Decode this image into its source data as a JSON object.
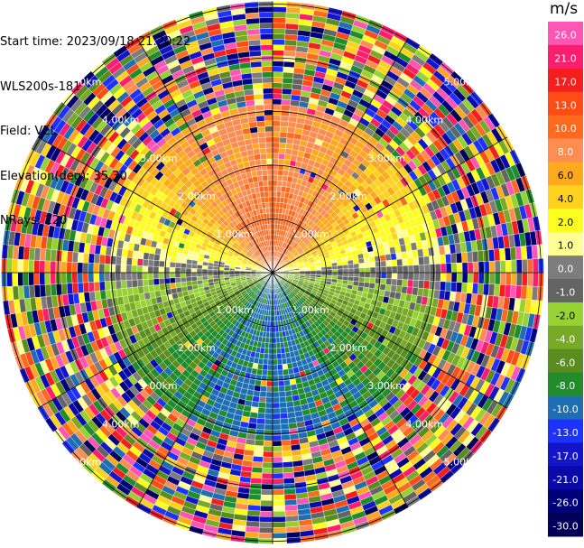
{
  "header": {
    "start_time": "Start time: 2023/09/18 21:20:22",
    "instrument": "WLS200s-181",
    "field": "Field: VEL",
    "elevation": "Elevation(deg): 35.30",
    "nrays": "NRays: 120"
  },
  "colorbar": {
    "unit": "m/s",
    "labels": [
      "26.0",
      "21.0",
      "17.0",
      "13.0",
      "10.0",
      "8.0",
      "6.0",
      "4.0",
      "2.0",
      "1.0",
      "0.0",
      "-1.0",
      "-2.0",
      "-4.0",
      "-6.0",
      "-8.0",
      "-10.0",
      "-13.0",
      "-17.0",
      "-21.0",
      "-26.0",
      "-30.0"
    ],
    "colors": [
      "#ff55b4",
      "#ff1e6e",
      "#f51e1e",
      "#ff4b14",
      "#ff6a1e",
      "#ff8c50",
      "#ffaa1e",
      "#ffd21e",
      "#ffff1e",
      "#ffff96",
      "#7d7d7d",
      "#646464",
      "#96d232",
      "#78aa28",
      "#5a8c1e",
      "#208c2c",
      "#1e6eb4",
      "#1e32ff",
      "#1414c8",
      "#0a0aaa",
      "#000078",
      "#00005a"
    ]
  },
  "chart_data": {
    "type": "ppi",
    "field": "VEL",
    "units": "m/s",
    "n_rays": 120,
    "elevation_deg": 35.3,
    "range_rings_km": [
      1.0,
      2.0,
      3.0,
      4.0,
      5.0
    ],
    "ring_labels": [
      "1.00km",
      "2.00km",
      "3.00km",
      "4.00km",
      "5.00km"
    ],
    "vmin": -30.0,
    "vmax": 26.0,
    "pattern": {
      "north_sector": "positive (2 to 17 m/s)",
      "south_sector": "negative (-1 to -8 m/s)",
      "east_west": "near zero",
      "beyond_3km": "noise"
    }
  }
}
